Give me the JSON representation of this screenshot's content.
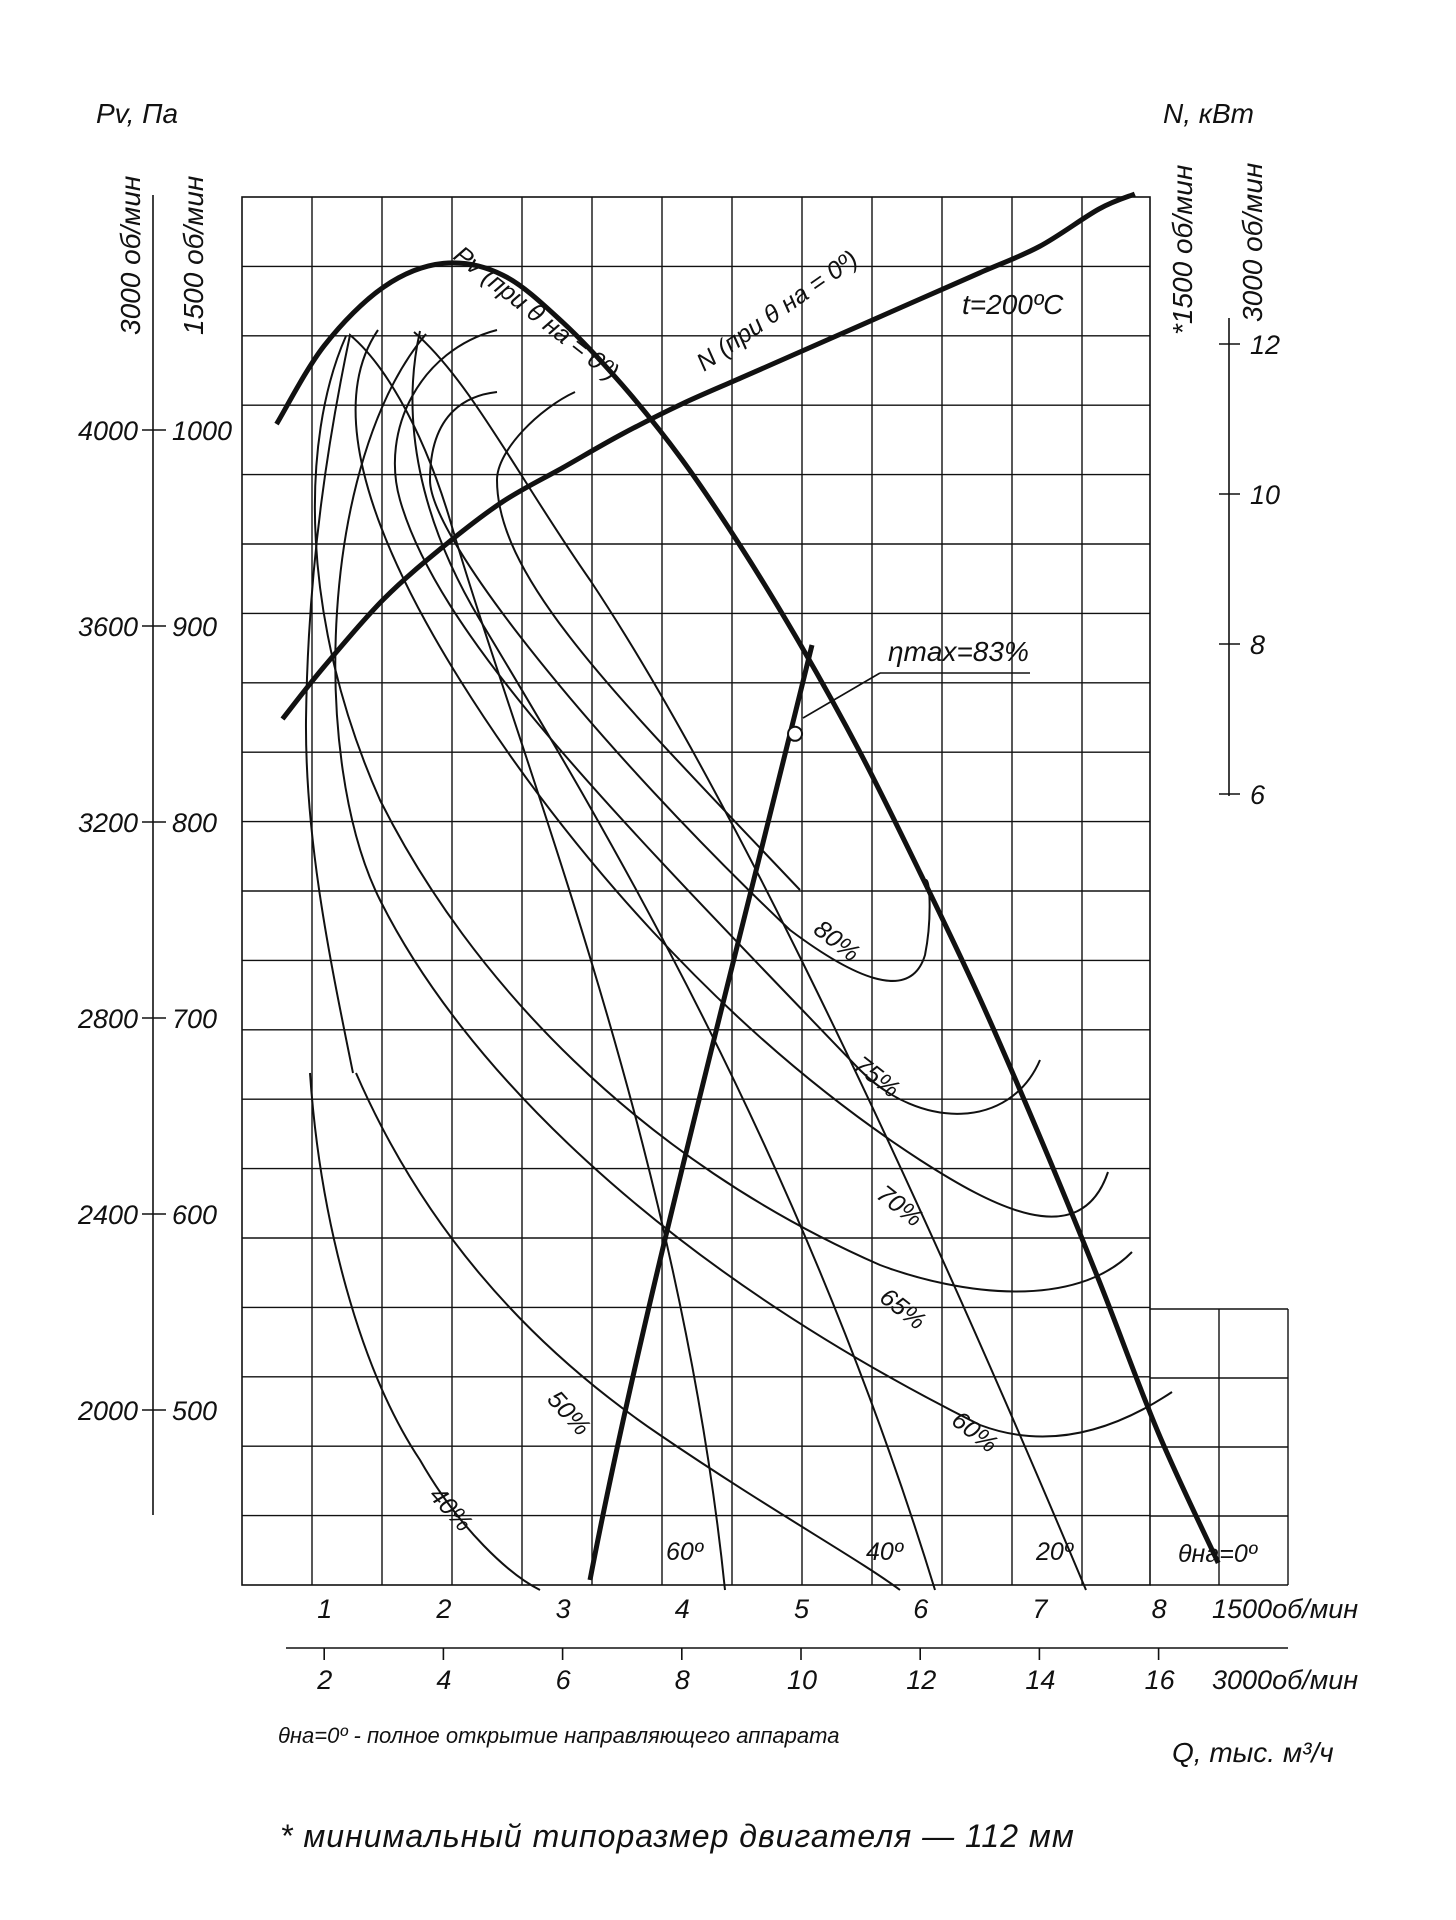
{
  "chart_data": {
    "type": "line",
    "left_axis": {
      "label": "Pv, Па",
      "scale_labels": [
        "3000 об/мин",
        "1500 об/мин"
      ],
      "ticks_3000": [
        "4000",
        "3600",
        "3200",
        "2800",
        "2400",
        "2000"
      ],
      "ticks_1500": [
        "1000",
        "900",
        "800",
        "700",
        "600",
        "500"
      ]
    },
    "right_axis": {
      "label": "N, кВт",
      "scale_labels": [
        "*1500 об/мин",
        "3000 об/мин"
      ],
      "ticks": [
        "12",
        "10",
        "8",
        "6"
      ]
    },
    "x_axis_1500": {
      "ticks": [
        "1",
        "2",
        "3",
        "4",
        "5",
        "6",
        "7",
        "8"
      ],
      "label": "1500об/мин"
    },
    "x_axis_3000": {
      "ticks": [
        "2",
        "4",
        "6",
        "8",
        "10",
        "12",
        "14",
        "16"
      ],
      "label": "3000об/мин"
    },
    "x_unit": "Q, тыс. м³/ч",
    "temperature": "t=200ºC",
    "curve_labels": {
      "pv": "Pv (при θ на = 0º)",
      "n": "N (при θ на = 0º)"
    },
    "efficiency_max": {
      "label": "ηmax=83%",
      "q": 4.95,
      "pv": 845
    },
    "efficiency_labels": [
      "80%",
      "75%",
      "70%",
      "65%",
      "60%",
      "50%",
      "40%"
    ],
    "vane_angles": [
      "60º",
      "40º",
      "20º",
      "θна=0º"
    ],
    "footnote_vane": "θна=0º - полное открытие направляющего аппарата",
    "motor_note": "* минимальный типоразмер двигателя — 112 мм",
    "series": [
      {
        "name": "Pv (при θ на = 0º)",
        "x": [
          0.6,
          1.0,
          1.5,
          2.0,
          2.5,
          3.0,
          3.5,
          4.0,
          4.5,
          5.0,
          5.5,
          6.0,
          6.5,
          7.0,
          7.5,
          8.0,
          8.5
        ],
        "y": [
          1003,
          1043,
          1073,
          1085,
          1079,
          1055,
          1023,
          985,
          940,
          890,
          835,
          774,
          710,
          640,
          566,
          488,
          422
        ]
      },
      {
        "name": "N (при θ на = 0º)",
        "x": [
          0.65,
          1.0,
          1.5,
          2.0,
          2.5,
          3.0,
          3.5,
          4.0,
          4.5,
          5.0,
          5.5,
          6.0,
          6.5,
          7.0,
          7.5,
          7.8
        ],
        "y_kw": [
          7.0,
          7.7,
          8.6,
          9.3,
          9.9,
          10.35,
          10.8,
          11.2,
          11.55,
          11.9,
          12.25,
          12.6,
          12.95,
          13.3,
          13.8,
          14.0
        ]
      }
    ]
  }
}
